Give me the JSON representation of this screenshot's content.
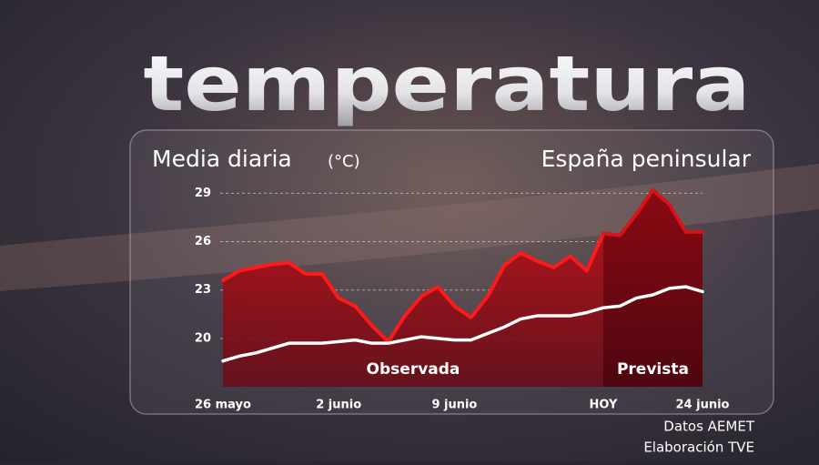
{
  "chart_data": {
    "type": "line",
    "title": "temperatura",
    "subtitle": "Media diaria",
    "unit": "(°C)",
    "region": "España peninsular",
    "source": "Datos AEMET",
    "credit": "Elaboración TVE",
    "categories": [
      "26 mayo",
      null,
      null,
      null,
      null,
      null,
      null,
      "2 junio",
      null,
      null,
      null,
      null,
      null,
      null,
      "9 junio",
      null,
      null,
      null,
      null,
      null,
      null,
      null,
      null,
      "HOY",
      null,
      null,
      null,
      null,
      null,
      "24 junio"
    ],
    "series": [
      {
        "name": "Observada",
        "color": "#ff1a1a",
        "values": [
          23.6,
          24.2,
          24.4,
          24.6,
          24.7,
          24.0,
          24.0,
          22.5,
          22.0,
          20.8,
          19.8,
          21.4,
          22.6,
          23.2,
          22.0,
          21.3,
          22.6,
          24.5,
          25.3,
          24.8,
          24.4,
          25.1,
          24.2,
          26.5,
          null,
          null,
          null,
          null,
          null,
          null
        ]
      },
      {
        "name": "Prevista",
        "color": "#d8141a",
        "values": [
          null,
          null,
          null,
          null,
          null,
          null,
          null,
          null,
          null,
          null,
          null,
          null,
          null,
          null,
          null,
          null,
          null,
          null,
          null,
          null,
          null,
          null,
          null,
          26.5,
          26.4,
          27.7,
          29.2,
          28.3,
          26.6,
          26.6
        ]
      },
      {
        "color": "#ffffff",
        "values": [
          18.6,
          18.9,
          19.1,
          19.4,
          19.7,
          19.7,
          19.7,
          19.8,
          19.9,
          19.7,
          19.7,
          19.9,
          20.1,
          20.0,
          19.9,
          19.9,
          20.3,
          20.7,
          21.2,
          21.4,
          21.4,
          21.4,
          21.6,
          21.9,
          22.0,
          22.5,
          22.7,
          23.1,
          23.2,
          22.9
        ]
      }
    ],
    "ylim": [
      17,
      29.7
    ],
    "yticks": [
      20,
      23,
      26,
      29
    ],
    "grid": true
  }
}
